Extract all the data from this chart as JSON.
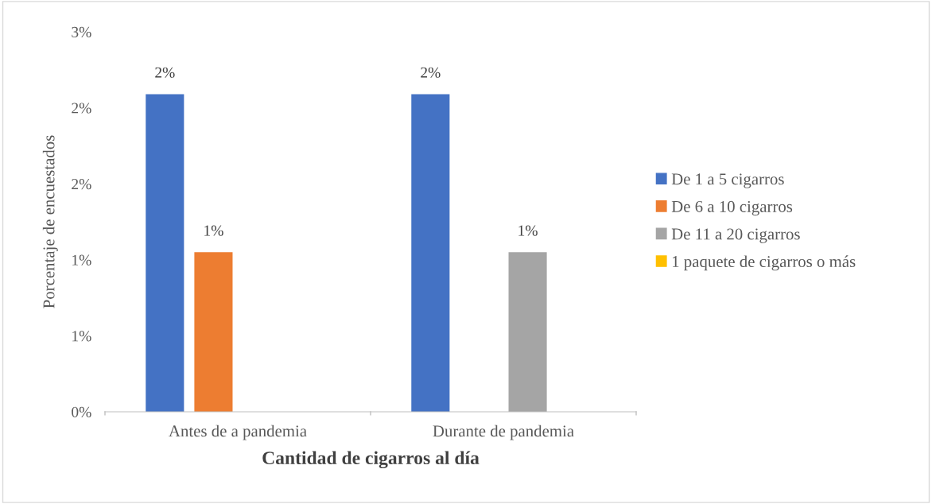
{
  "chart_data": {
    "type": "bar",
    "xlabel": "Cantidad de cigarros al día",
    "ylabel": "Porcentaje de encuestados",
    "categories": [
      "Antes de a pandemia",
      "Durante de pandemia"
    ],
    "series": [
      {
        "name": "De 1 a 5 cigarros",
        "color": "#4472c4",
        "values": [
          2.09,
          2.09
        ],
        "value_labels": [
          "2%",
          "2%"
        ]
      },
      {
        "name": "De 6 a 10 cigarros",
        "color": "#ed7d31",
        "values": [
          1.05,
          0
        ],
        "value_labels": [
          "1%",
          null
        ]
      },
      {
        "name": "De 11 a 20 cigarros",
        "color": "#a5a5a5",
        "values": [
          0,
          1.05
        ],
        "value_labels": [
          null,
          "1%"
        ]
      },
      {
        "name": "1 paquete de cigarros o más",
        "color": "#ffc000",
        "values": [
          0,
          0
        ],
        "value_labels": [
          null,
          null
        ]
      }
    ],
    "ylim": [
      0,
      2.5
    ],
    "yticks": [
      {
        "value": 0,
        "label": "0%"
      },
      {
        "value": 0.5,
        "label": "1%"
      },
      {
        "value": 1,
        "label": "1%"
      },
      {
        "value": 1.5,
        "label": "2%"
      },
      {
        "value": 2,
        "label": "2%"
      },
      {
        "value": 2.5,
        "label": "3%"
      }
    ],
    "grid": false,
    "legend": "right"
  }
}
